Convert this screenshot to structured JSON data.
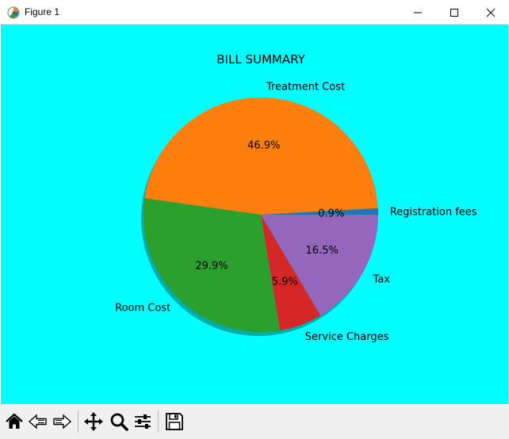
{
  "window": {
    "title": "Figure 1",
    "controls": [
      "minimize",
      "maximize",
      "close"
    ]
  },
  "figure": {
    "background": "#00ffff"
  },
  "chart_data": {
    "type": "pie",
    "title": "BILL SUMMARY",
    "shadow": true,
    "categories": [
      "Registration fees",
      "Treatment Cost",
      "Room Cost",
      "Service Charges",
      "Tax"
    ],
    "values": [
      0.9,
      46.9,
      29.9,
      5.9,
      16.5
    ],
    "value_labels": [
      "0.9%",
      "46.9%",
      "29.9%",
      "5.9%",
      "16.5%"
    ],
    "colors": [
      "#1f77b4",
      "#ff7f0e",
      "#2ca02c",
      "#d62728",
      "#9467bd"
    ],
    "start_angle_deg": 0,
    "direction": "counterclockwise"
  },
  "toolbar": {
    "buttons": [
      "home-icon",
      "back-icon",
      "forward-icon",
      "pan-icon",
      "zoom-icon",
      "configure-subplots-icon",
      "save-icon"
    ]
  }
}
